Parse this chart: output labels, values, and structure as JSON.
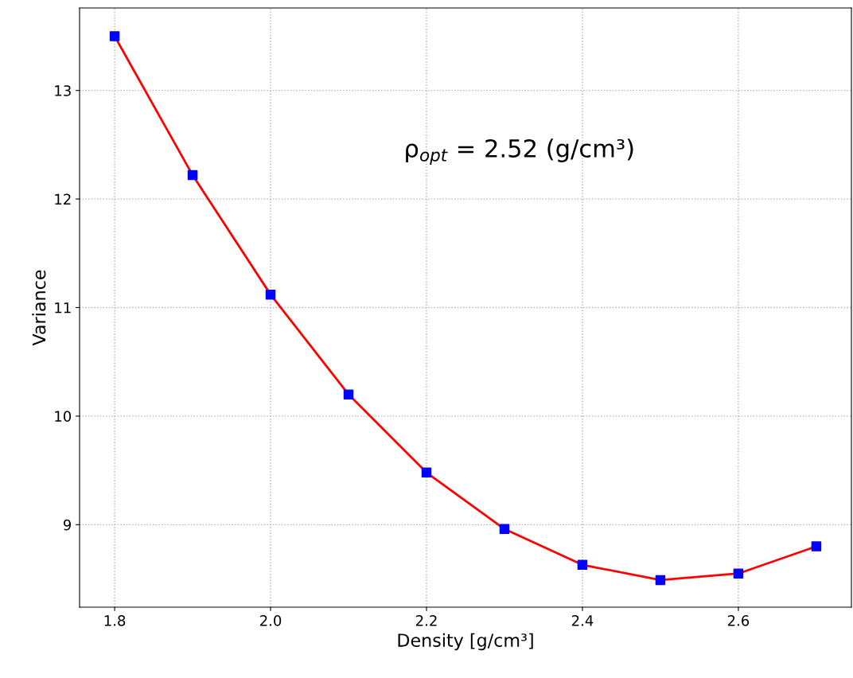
{
  "chart_data": {
    "type": "line",
    "xlabel": "Density [g/cm³]",
    "ylabel": "Variance",
    "x": [
      1.8,
      1.9,
      2.0,
      2.1,
      2.2,
      2.3,
      2.4,
      2.5,
      2.6,
      2.7
    ],
    "series": [
      {
        "color": "#ff0000",
        "colors": [
          "#0000ff",
          "#0000ff",
          "#0000ff",
          "#0000ff",
          "#0000ff",
          "#0000ff",
          "#0000ff",
          "#0000ff",
          "#0000ff",
          "#0000ff"
        ],
        "values": [
          13.5,
          12.22,
          11.12,
          10.2,
          9.48,
          8.96,
          8.63,
          8.49,
          8.55,
          8.8
        ]
      }
    ],
    "marker": "square",
    "line_style": "solid",
    "xlim": [
      1.755,
      2.745
    ],
    "xticks": [
      {
        "value": 1.8,
        "label": "1.8"
      },
      {
        "value": 2.0,
        "label": "2.0"
      },
      {
        "value": 2.2,
        "label": "2.2"
      },
      {
        "value": 2.4,
        "label": "2.4"
      },
      {
        "value": 2.6,
        "label": "2.6"
      }
    ],
    "ylim": [
      8.24,
      13.76
    ],
    "yticks": [
      9,
      10,
      11,
      12,
      13
    ],
    "grid": true,
    "annotations": [
      "ρ$_{opt}$ = 2.52 (g/cm³)"
    ]
  }
}
